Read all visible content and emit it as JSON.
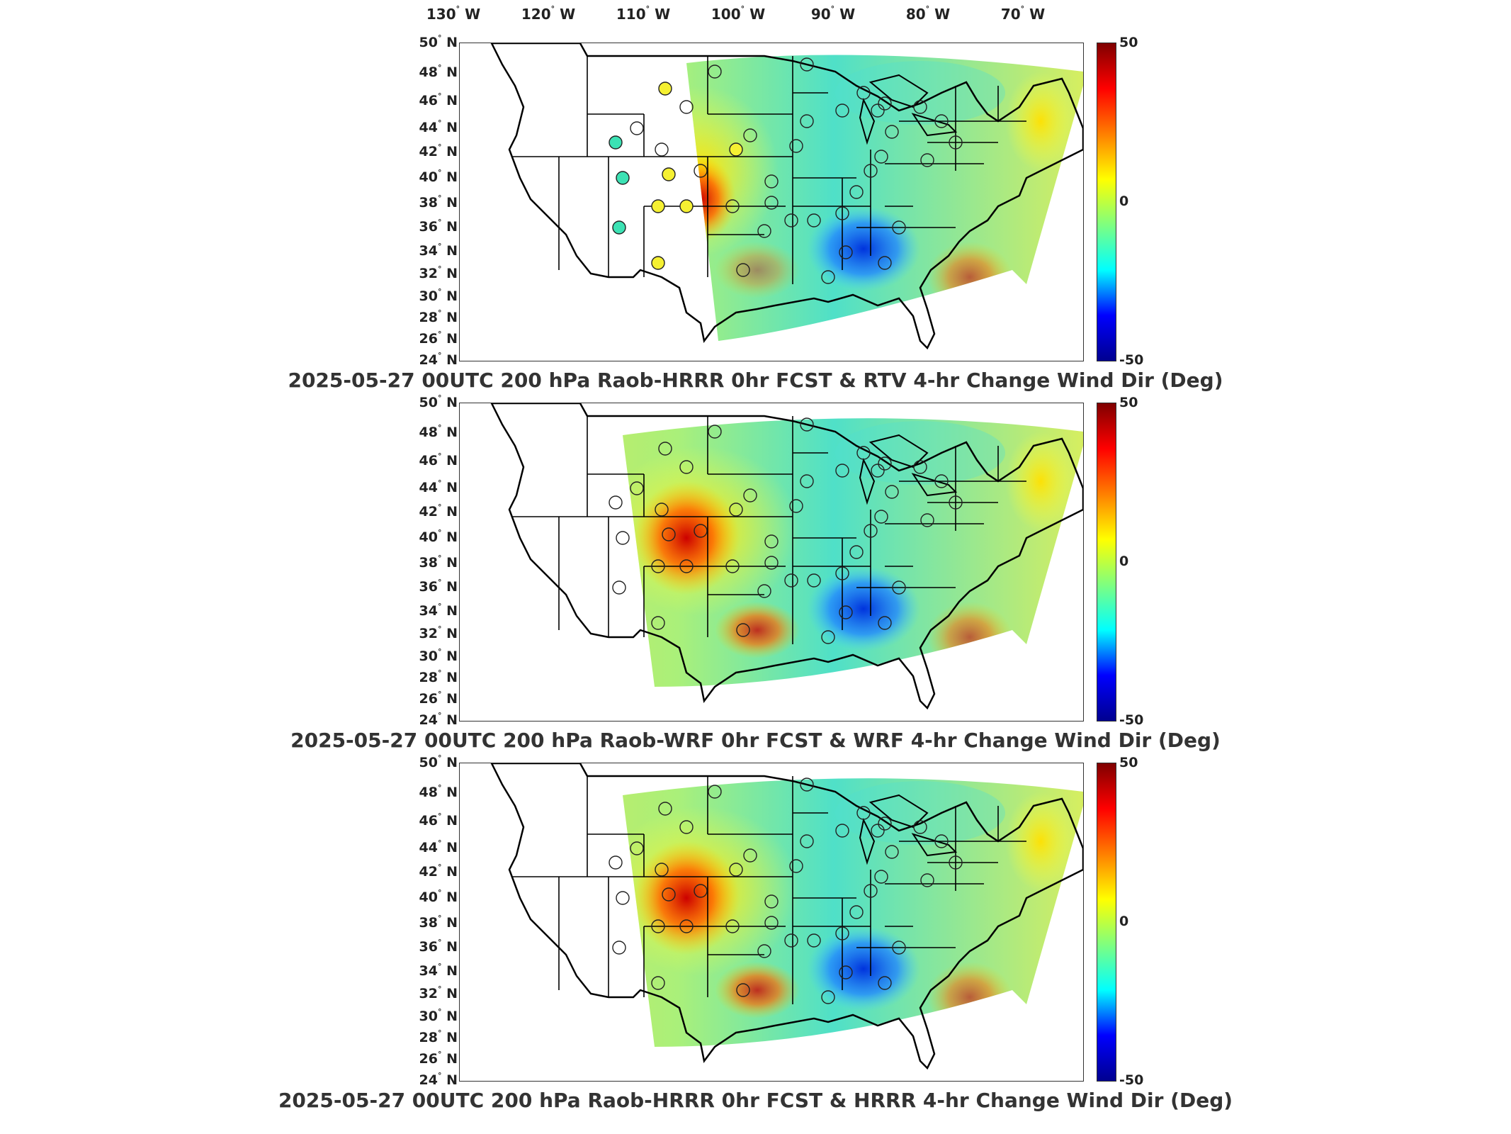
{
  "lon_labels": [
    "130",
    "120",
    "110",
    "100",
    "90",
    "80",
    "70"
  ],
  "lon_hemi": "W",
  "lat_labels": [
    "50",
    "48",
    "46",
    "44",
    "42",
    "40",
    "38",
    "36",
    "34",
    "32",
    "30",
    "28",
    "26",
    "24"
  ],
  "lat_hemi": "N",
  "degree_symbol": "°",
  "colorbar": {
    "max": "50",
    "mid": "0",
    "min": "-50",
    "colors": [
      "#00008f",
      "#0000ff",
      "#00ffff",
      "#7fff7f",
      "#ffff00",
      "#ff7f00",
      "#ff0000",
      "#7f0000"
    ]
  },
  "panels": [
    {
      "title": "2025-05-27 00UTC 200 hPa Raob-HRRR 0hr FCST & RTV 4-hr Change Wind Dir (Deg)"
    },
    {
      "title": "2025-05-27 00UTC 200 hPa Raob-WRF 0hr FCST & WRF 4-hr Change Wind Dir (Deg)"
    },
    {
      "title": "2025-05-27 00UTC 200 hPa Raob-HRRR 0hr FCST & HRRR 4-hr Change Wind Dir (Deg)"
    }
  ]
}
